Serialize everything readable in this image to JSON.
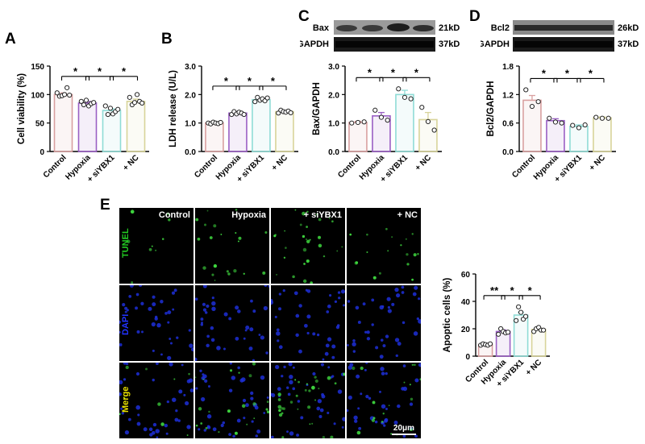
{
  "panels": {
    "A": {
      "letter": "A"
    },
    "B": {
      "letter": "B"
    },
    "C": {
      "letter": "C"
    },
    "D": {
      "letter": "D"
    },
    "E": {
      "letter": "E"
    }
  },
  "blots": {
    "C": {
      "rows": [
        {
          "name": "Bax",
          "size": "21kD"
        },
        {
          "name": "GAPDH",
          "size": "37kD"
        }
      ]
    },
    "D": {
      "rows": [
        {
          "name": "Bcl2",
          "size": "26kD"
        },
        {
          "name": "GAPDH",
          "size": "37kD"
        }
      ]
    }
  },
  "microscopy": {
    "conditions": [
      "Control",
      "Hypoxia",
      "+ siYBX1",
      "+ NC"
    ],
    "stains": [
      {
        "name": "TUNEL",
        "color": "#22cc22"
      },
      {
        "name": "DAPI",
        "color": "#2233ff"
      },
      {
        "name": "Merge",
        "color": "#e8e000"
      }
    ],
    "scale_bar": "20μm"
  },
  "colors": {
    "Control": "#d9a0a0",
    "Hypoxia": "#9a5fc4",
    "+ siYBX1": "#8fdcd6",
    "+ NC": "#d8d49a"
  },
  "chart_data": [
    {
      "id": "A",
      "type": "bar",
      "categories": [
        "Control",
        "Hypoxia",
        "+ siYBX1",
        "+ NC"
      ],
      "values": [
        100,
        85,
        72,
        88
      ],
      "errors": [
        3,
        3,
        3,
        4
      ],
      "points": [
        [
          103,
          97,
          98,
          100,
          112,
          99
        ],
        [
          88,
          82,
          90,
          80,
          84,
          86
        ],
        [
          80,
          65,
          76,
          66,
          70,
          74
        ],
        [
          95,
          82,
          86,
          100,
          88,
          85
        ]
      ],
      "title": "",
      "xlabel": "",
      "ylabel": "Cell viability (%)",
      "ylim": [
        0,
        150
      ],
      "yticks": [
        0,
        50,
        100,
        150
      ],
      "significance": [
        {
          "from": 0,
          "to": 1,
          "label": "*"
        },
        {
          "from": 1,
          "to": 2,
          "label": "*"
        },
        {
          "from": 2,
          "to": 3,
          "label": "*"
        }
      ]
    },
    {
      "id": "B",
      "type": "bar",
      "categories": [
        "Control",
        "Hypoxia",
        "+ siYBX1",
        "+ NC"
      ],
      "values": [
        1.0,
        1.35,
        1.82,
        1.4
      ],
      "errors": [
        0.03,
        0.04,
        0.05,
        0.04
      ],
      "points": [
        [
          1.0,
          0.97,
          1.03,
          1.0,
          0.98,
          1.02
        ],
        [
          1.3,
          1.4,
          1.32,
          1.38,
          1.35,
          1.3
        ],
        [
          1.75,
          1.9,
          1.8,
          1.85,
          1.78,
          1.88
        ],
        [
          1.35,
          1.45,
          1.4,
          1.38,
          1.42,
          1.36
        ]
      ],
      "title": "",
      "xlabel": "",
      "ylabel": "LDH  release (U/L)",
      "ylim": [
        0,
        3.0
      ],
      "yticks": [
        0,
        1.0,
        2.0,
        3.0
      ],
      "significance": [
        {
          "from": 0,
          "to": 1,
          "label": "*"
        },
        {
          "from": 1,
          "to": 2,
          "label": "*"
        },
        {
          "from": 2,
          "to": 3,
          "label": "*"
        }
      ]
    },
    {
      "id": "C",
      "type": "bar",
      "categories": [
        "Control",
        "Hypoxia",
        "+ siYBX1",
        "+ NC"
      ],
      "values": [
        1.02,
        1.25,
        2.0,
        1.12
      ],
      "errors": [
        0.04,
        0.12,
        0.15,
        0.25
      ],
      "points": [
        [
          1.0,
          1.02,
          1.04
        ],
        [
          1.45,
          1.2,
          1.1
        ],
        [
          2.2,
          1.9,
          1.85
        ],
        [
          1.55,
          1.05,
          0.75
        ]
      ],
      "title": "",
      "xlabel": "",
      "ylabel": "Bax/GAPDH",
      "ylim": [
        0,
        3.0
      ],
      "yticks": [
        0,
        1.0,
        2.0,
        3.0
      ],
      "significance": [
        {
          "from": 0,
          "to": 1,
          "label": "*"
        },
        {
          "from": 1,
          "to": 2,
          "label": "*"
        },
        {
          "from": 2,
          "to": 3,
          "label": "*"
        }
      ]
    },
    {
      "id": "D",
      "type": "bar",
      "categories": [
        "Control",
        "Hypoxia",
        "+ siYBX1",
        "+ NC"
      ],
      "values": [
        1.08,
        0.65,
        0.53,
        0.71
      ],
      "errors": [
        0.1,
        0.04,
        0.03,
        0.02
      ],
      "points": [
        [
          1.3,
          0.95,
          1.05
        ],
        [
          0.7,
          0.62,
          0.6
        ],
        [
          0.55,
          0.5,
          0.56
        ],
        [
          0.72,
          0.7,
          0.7
        ]
      ],
      "title": "",
      "xlabel": "",
      "ylabel": "Bcl2/GAPDH",
      "ylim": [
        0,
        1.8
      ],
      "yticks": [
        0,
        0.6,
        1.2,
        1.8
      ],
      "significance": [
        {
          "from": 0,
          "to": 1,
          "label": "*"
        },
        {
          "from": 1,
          "to": 2,
          "label": "*"
        },
        {
          "from": 2,
          "to": 3,
          "label": "*"
        }
      ]
    },
    {
      "id": "E",
      "type": "bar",
      "categories": [
        "Control",
        "Hypoxia",
        "+ siYBX1",
        "+ NC"
      ],
      "values": [
        8.5,
        18,
        30,
        19.5
      ],
      "errors": [
        0.8,
        1.2,
        2.0,
        1.0
      ],
      "points": [
        [
          8,
          9,
          8.5,
          8,
          9
        ],
        [
          16,
          20,
          18,
          17,
          17.5
        ],
        [
          26,
          36,
          32,
          27,
          29
        ],
        [
          18,
          20,
          21,
          19,
          19
        ]
      ],
      "title": "",
      "xlabel": "",
      "ylabel": "Apoptic cells (%)",
      "ylim": [
        0,
        60
      ],
      "yticks": [
        0,
        20,
        40,
        60
      ],
      "significance": [
        {
          "from": 0,
          "to": 1,
          "label": "**"
        },
        {
          "from": 1,
          "to": 2,
          "label": "*"
        },
        {
          "from": 2,
          "to": 3,
          "label": "*"
        }
      ]
    }
  ]
}
